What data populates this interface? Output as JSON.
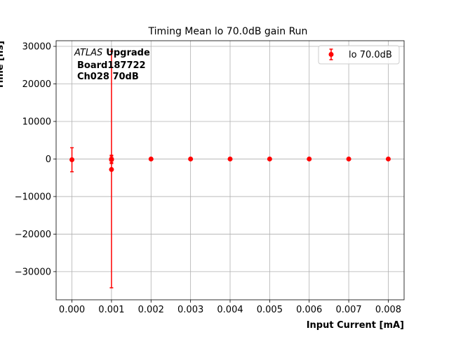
{
  "chart_data": {
    "type": "scatter",
    "title": "Timing Mean lo 70.0dB gain Run",
    "xlabel": "Input Current [mA]",
    "ylabel": "Time [ns]",
    "xlim": [
      -0.0004,
      0.0084
    ],
    "ylim": [
      -37500,
      31500
    ],
    "x_ticks": [
      0.0,
      0.001,
      0.002,
      0.003,
      0.004,
      0.005,
      0.006,
      0.007,
      0.008
    ],
    "x_tick_labels": [
      "0.000",
      "0.001",
      "0.002",
      "0.003",
      "0.004",
      "0.005",
      "0.006",
      "0.007",
      "0.008"
    ],
    "y_ticks": [
      -30000,
      -20000,
      -10000,
      0,
      10000,
      20000,
      30000
    ],
    "y_tick_labels": [
      "−30000",
      "−20000",
      "−10000",
      "0",
      "10000",
      "20000",
      "30000"
    ],
    "grid": true,
    "legend_position": "top-right",
    "annotation": {
      "italic": "ATLAS",
      "bold": "Upgrade",
      "line2": "Board187722",
      "line3": "Ch028 70dB"
    },
    "series": [
      {
        "name": "lo 70.0dB",
        "color": "#ff0000",
        "marker": "circle",
        "x": [
          0.0,
          0.001,
          0.001,
          0.001,
          0.002,
          0.003,
          0.004,
          0.005,
          0.006,
          0.007,
          0.008
        ],
        "y": [
          -200,
          0,
          -200,
          -2800,
          0,
          0,
          0,
          0,
          0,
          0,
          0
        ],
        "yerr": [
          3200,
          1000,
          1000,
          31500,
          100,
          100,
          100,
          100,
          100,
          100,
          100
        ]
      }
    ]
  }
}
